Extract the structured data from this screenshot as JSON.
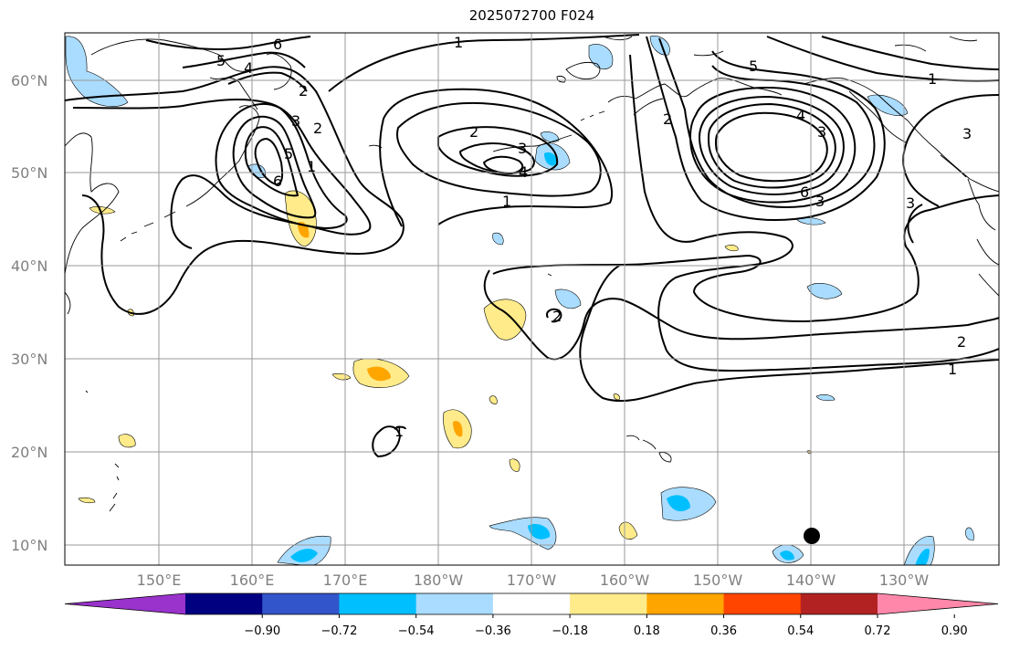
{
  "title": "2025072700 F024",
  "latitude_labels": [
    "60°N",
    "50°N",
    "40°N",
    "30°N",
    "20°N",
    "10°N"
  ],
  "longitude_labels": [
    "150°E",
    "160°E",
    "170°E",
    "180°W",
    "170°W",
    "160°W",
    "150°W",
    "140°W",
    "130°W"
  ],
  "contour_labels": [
    "6",
    "5",
    "4",
    "3",
    "2",
    "5",
    "6",
    "2",
    "3",
    "4",
    "1",
    "1",
    "2",
    "5",
    "4",
    "3",
    "6",
    "3",
    "2",
    "1",
    "3",
    "3",
    "1",
    "2",
    "1",
    "2",
    "1"
  ],
  "colorbar": {
    "tick_labels": [
      "−0.90",
      "−0.72",
      "−0.54",
      "−0.36",
      "−0.18",
      "0.18",
      "0.36",
      "0.54",
      "0.72",
      "0.90"
    ],
    "colors": [
      "#9933cc",
      "#000080",
      "#3355cc",
      "#00bfff",
      "#aadcff",
      "#ffffff",
      "#ffeb8a",
      "#ffa500",
      "#ff4500",
      "#b22222",
      "#ff88aa"
    ]
  },
  "marker_color": "#000000"
}
